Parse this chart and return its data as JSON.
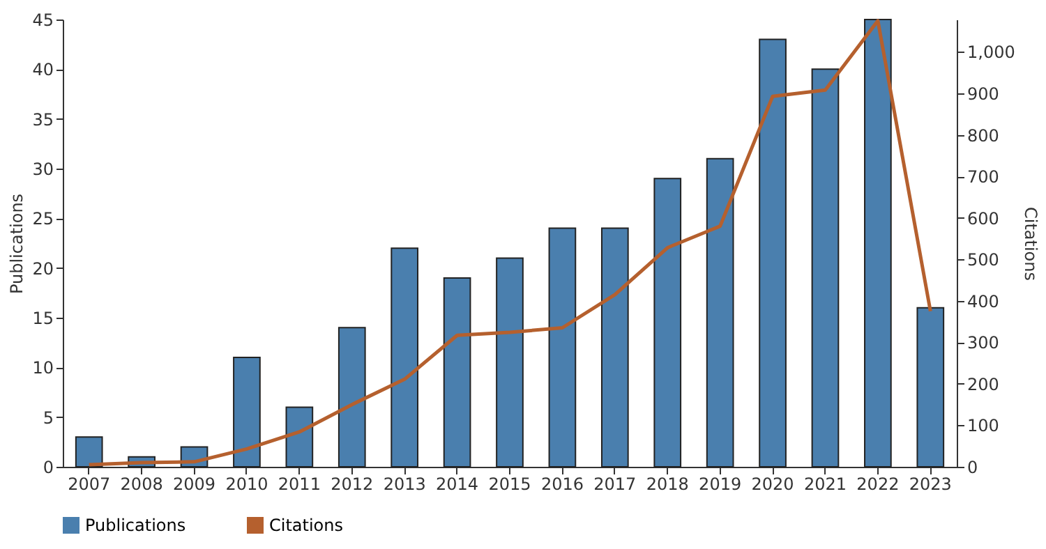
{
  "chart_data": {
    "type": "bar",
    "categories": [
      "2007",
      "2008",
      "2009",
      "2010",
      "2011",
      "2012",
      "2013",
      "2014",
      "2015",
      "2016",
      "2017",
      "2018",
      "2019",
      "2020",
      "2021",
      "2022",
      "2023"
    ],
    "ylabel": "Publications",
    "y2label": "Citations",
    "series": [
      {
        "name": "Publications",
        "color": "#4a7fae",
        "values": [
          3,
          1,
          2,
          11,
          6,
          14,
          22,
          19,
          21,
          24,
          24,
          29,
          31,
          43,
          40,
          45,
          16
        ]
      },
      {
        "name": "Citations",
        "type": "line",
        "axis": "y2",
        "color": "#b5602e",
        "values": [
          5,
          10,
          12,
          43,
          84,
          150,
          211,
          317,
          324,
          335,
          415,
          528,
          580,
          893,
          908,
          1075,
          375
        ]
      }
    ],
    "ylim": [
      0,
      45
    ],
    "yticks": [
      0,
      5,
      10,
      15,
      20,
      25,
      30,
      35,
      40,
      45
    ],
    "y2lim": [
      0,
      1078
    ],
    "y2ticks": [
      0,
      {
        "value": 100,
        "label": "100"
      },
      {
        "value": 200,
        "label": "200"
      },
      300,
      400,
      500,
      600,
      700,
      800,
      900,
      {
        "value": 1000,
        "label": "1,000"
      }
    ],
    "grid": false,
    "legend": "bottom",
    "marker": "none",
    "line_style": "solid"
  }
}
